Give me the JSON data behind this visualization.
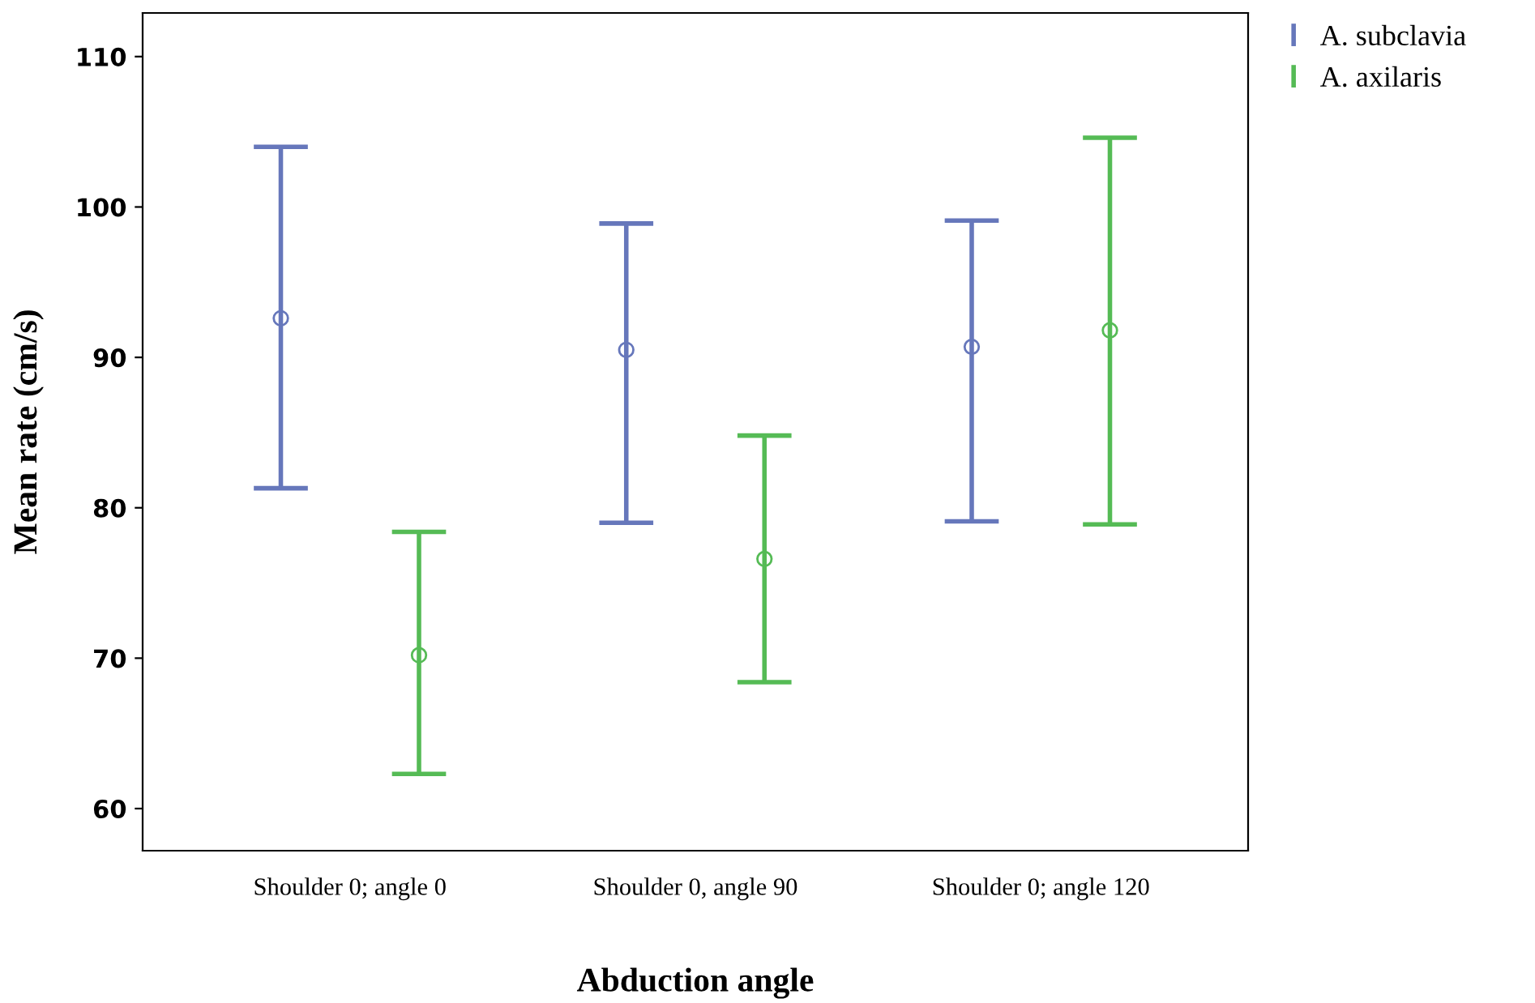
{
  "chart_data": {
    "type": "scatter",
    "xlabel": "Abduction angle",
    "ylabel": "Mean rate (cm/s)",
    "categories": [
      "Shoulder 0; angle 0",
      "Shoulder 0, angle 90",
      "Shoulder 0; angle 120"
    ],
    "series": [
      {
        "name": "A. subclavia",
        "color": "#6677bb",
        "values": [
          92.6,
          90.5,
          90.7
        ],
        "errors": [
          [
            81.3,
            104.0
          ],
          [
            79.0,
            98.9
          ],
          [
            79.1,
            99.1
          ]
        ]
      },
      {
        "name": "A. axilaris",
        "color": "#55bb55",
        "values": [
          70.2,
          76.6,
          91.8
        ],
        "errors": [
          [
            62.3,
            78.4
          ],
          [
            68.4,
            84.8
          ],
          [
            78.9,
            104.6
          ]
        ]
      }
    ],
    "ylim": [
      57.2,
      112.9
    ],
    "yticks": [
      60,
      70,
      80,
      90,
      100,
      110
    ],
    "marker": "circle",
    "grid": false,
    "legend": "top right"
  }
}
